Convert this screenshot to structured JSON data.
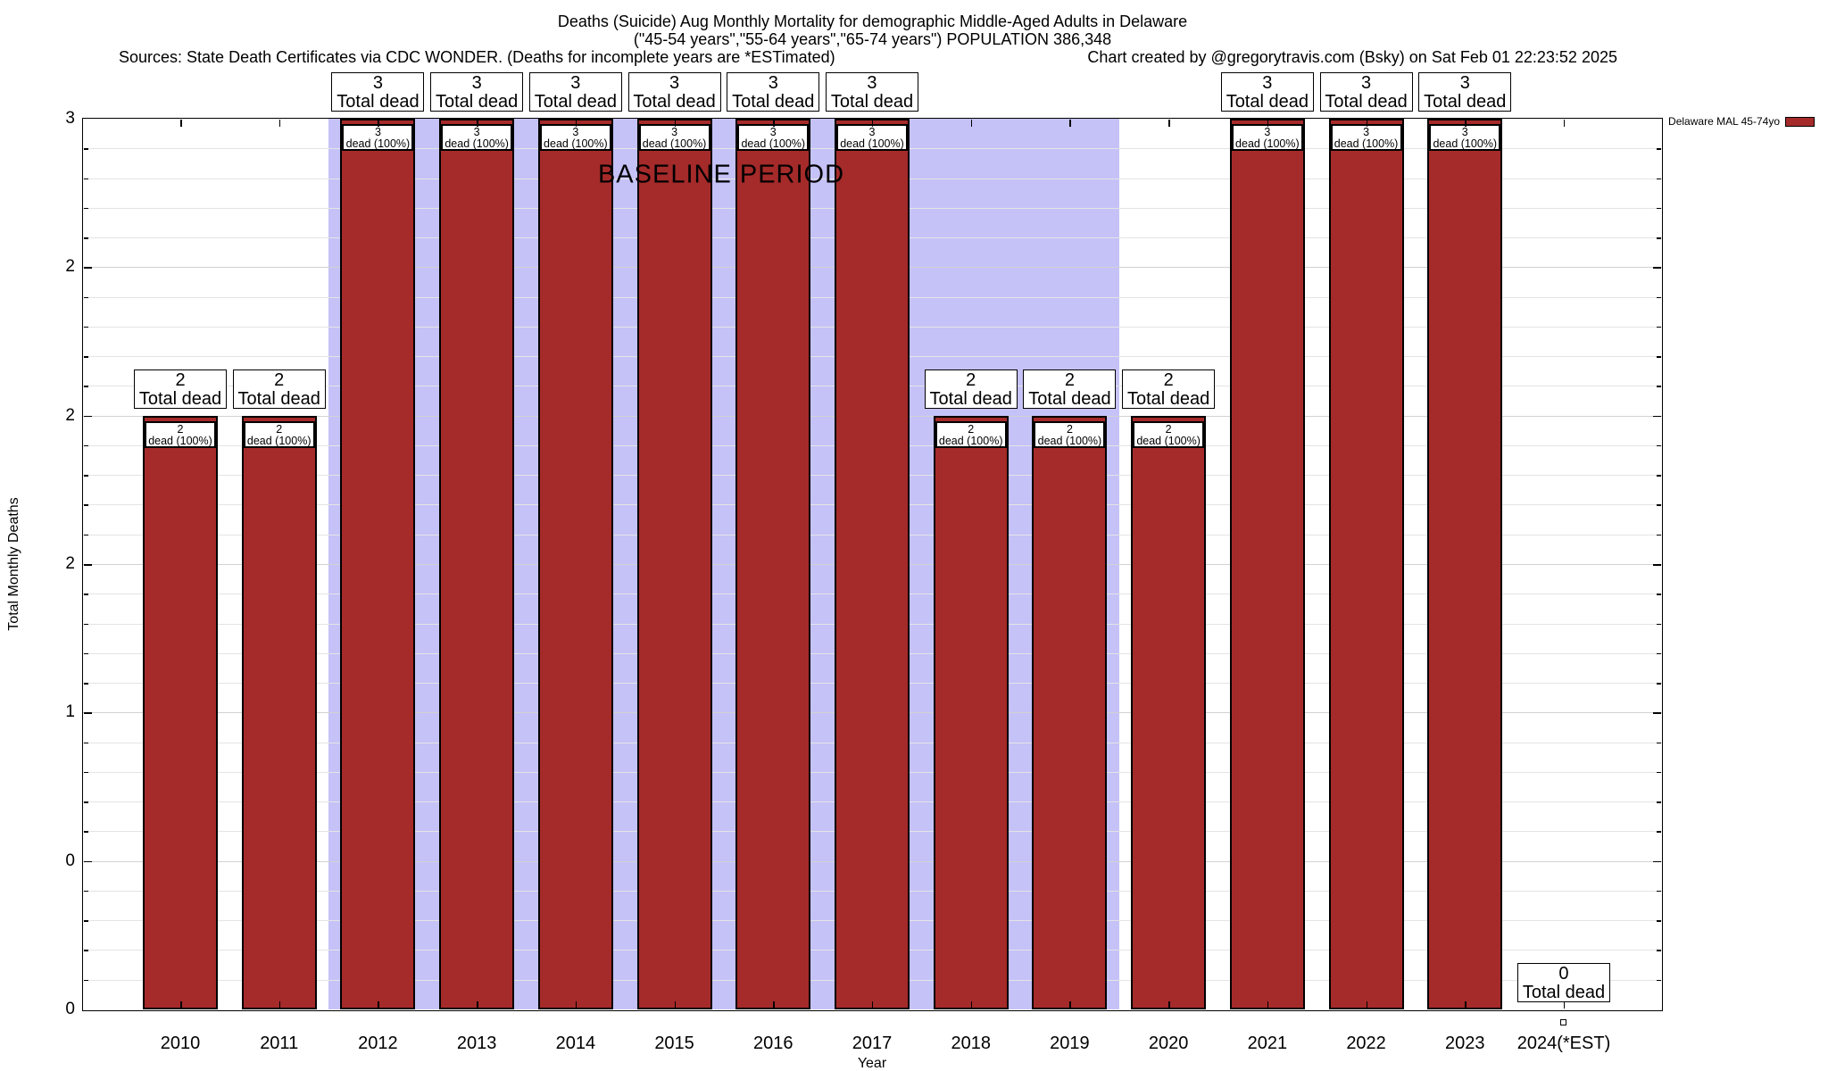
{
  "title": {
    "line1": "Deaths (Suicide) Aug Monthly Mortality for demographic Middle-Aged Adults in Delaware",
    "line2": "(\"45-54 years\",\"55-64 years\",\"65-74 years\") POPULATION 386,348",
    "sources": "Sources: State Death Certificates via CDC WONDER. (Deaths for incomplete years are *ESTimated)",
    "credit": "Chart created by @gregorytravis.com (Bsky) on Sat Feb 01 22:23:52 2025"
  },
  "chart_data": {
    "type": "bar",
    "xlabel": "Year",
    "ylabel": "Total Monthly Deaths",
    "ylim": [
      0,
      3
    ],
    "ytick_step": 0.5,
    "ytick_labels_top_to_bottom": [
      "3",
      "2",
      "2",
      "2",
      "1",
      "0",
      "0"
    ],
    "grid": true,
    "categories": [
      "2010",
      "2011",
      "2012",
      "2013",
      "2014",
      "2015",
      "2016",
      "2017",
      "2018",
      "2019",
      "2020",
      "2021",
      "2022",
      "2023",
      "2024(*EST)"
    ],
    "values": [
      2,
      2,
      3,
      3,
      3,
      3,
      3,
      3,
      2,
      2,
      2,
      3,
      3,
      3,
      0
    ],
    "bar_color": "#a52a2a",
    "bars": [
      {
        "year": "2010",
        "value": 2,
        "total_box_value": "2",
        "total_box_text": "Total dead",
        "inner_box_value": "2",
        "inner_box_text": "dead (100%)"
      },
      {
        "year": "2011",
        "value": 2,
        "total_box_value": "2",
        "total_box_text": "Total dead",
        "inner_box_value": "2",
        "inner_box_text": "dead (100%)"
      },
      {
        "year": "2012",
        "value": 3,
        "total_box_value": "3",
        "total_box_text": "Total dead",
        "inner_box_value": "3",
        "inner_box_text": "dead (100%)"
      },
      {
        "year": "2013",
        "value": 3,
        "total_box_value": "3",
        "total_box_text": "Total dead",
        "inner_box_value": "3",
        "inner_box_text": "dead (100%)"
      },
      {
        "year": "2014",
        "value": 3,
        "total_box_value": "3",
        "total_box_text": "Total dead",
        "inner_box_value": "3",
        "inner_box_text": "dead (100%)"
      },
      {
        "year": "2015",
        "value": 3,
        "total_box_value": "3",
        "total_box_text": "Total dead",
        "inner_box_value": "3",
        "inner_box_text": "dead (100%)"
      },
      {
        "year": "2016",
        "value": 3,
        "total_box_value": "3",
        "total_box_text": "Total dead",
        "inner_box_value": "3",
        "inner_box_text": "dead (100%)"
      },
      {
        "year": "2017",
        "value": 3,
        "total_box_value": "3",
        "total_box_text": "Total dead",
        "inner_box_value": "3",
        "inner_box_text": "dead (100%)"
      },
      {
        "year": "2018",
        "value": 2,
        "total_box_value": "2",
        "total_box_text": "Total dead",
        "inner_box_value": "2",
        "inner_box_text": "dead (100%)"
      },
      {
        "year": "2019",
        "value": 2,
        "total_box_value": "2",
        "total_box_text": "Total dead",
        "inner_box_value": "2",
        "inner_box_text": "dead (100%)"
      },
      {
        "year": "2020",
        "value": 2,
        "total_box_value": "2",
        "total_box_text": "Total dead",
        "inner_box_value": "2",
        "inner_box_text": "dead (100%)"
      },
      {
        "year": "2021",
        "value": 3,
        "total_box_value": "3",
        "total_box_text": "Total dead",
        "inner_box_value": "3",
        "inner_box_text": "dead (100%)"
      },
      {
        "year": "2022",
        "value": 3,
        "total_box_value": "3",
        "total_box_text": "Total dead",
        "inner_box_value": "3",
        "inner_box_text": "dead (100%)"
      },
      {
        "year": "2023",
        "value": 3,
        "total_box_value": "3",
        "total_box_text": "Total dead",
        "inner_box_value": "3",
        "inner_box_text": "dead (100%)"
      },
      {
        "year": "2024(*EST)",
        "value": 0,
        "total_box_value": "0",
        "total_box_text": "Total dead",
        "inner_box_value": null,
        "inner_box_text": null,
        "zero_marker": true
      }
    ],
    "baseline": {
      "label": "BASELINE PERIOD",
      "from_year": 2011.5,
      "to_year": 2019.5,
      "color": "#c5c2f8"
    },
    "legend": {
      "label": "Delaware MAL 45-74yo",
      "color": "#a52a2a",
      "position": "top-right"
    }
  }
}
